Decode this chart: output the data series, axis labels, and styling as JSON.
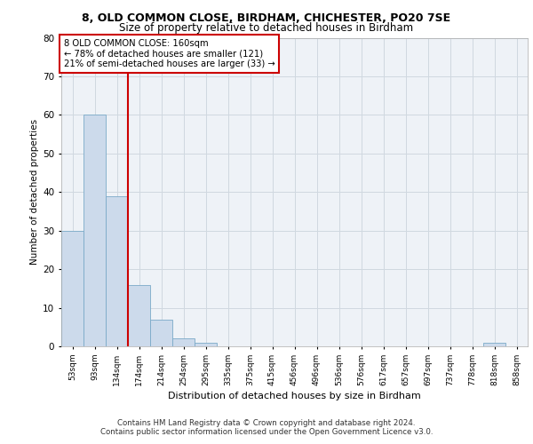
{
  "title1": "8, OLD COMMON CLOSE, BIRDHAM, CHICHESTER, PO20 7SE",
  "title2": "Size of property relative to detached houses in Birdham",
  "xlabel": "Distribution of detached houses by size in Birdham",
  "ylabel": "Number of detached properties",
  "bar_color": "#ccdaeb",
  "bar_edge_color": "#7aaac8",
  "categories": [
    "53sqm",
    "93sqm",
    "134sqm",
    "174sqm",
    "214sqm",
    "254sqm",
    "295sqm",
    "335sqm",
    "375sqm",
    "415sqm",
    "456sqm",
    "496sqm",
    "536sqm",
    "576sqm",
    "617sqm",
    "657sqm",
    "697sqm",
    "737sqm",
    "778sqm",
    "818sqm",
    "858sqm"
  ],
  "values": [
    30,
    60,
    39,
    16,
    7,
    2,
    1,
    0,
    0,
    0,
    0,
    0,
    0,
    0,
    0,
    0,
    0,
    0,
    0,
    1,
    0
  ],
  "ylim": [
    0,
    80
  ],
  "yticks": [
    0,
    10,
    20,
    30,
    40,
    50,
    60,
    70,
    80
  ],
  "property_line_x": 2.5,
  "annotation_box_text": "8 OLD COMMON CLOSE: 160sqm\n← 78% of detached houses are smaller (121)\n21% of semi-detached houses are larger (33) →",
  "annotation_box_color": "#cc0000",
  "grid_color": "#d0d8e0",
  "background_color": "#eef2f7",
  "footer_line1": "Contains HM Land Registry data © Crown copyright and database right 2024.",
  "footer_line2": "Contains public sector information licensed under the Open Government Licence v3.0."
}
